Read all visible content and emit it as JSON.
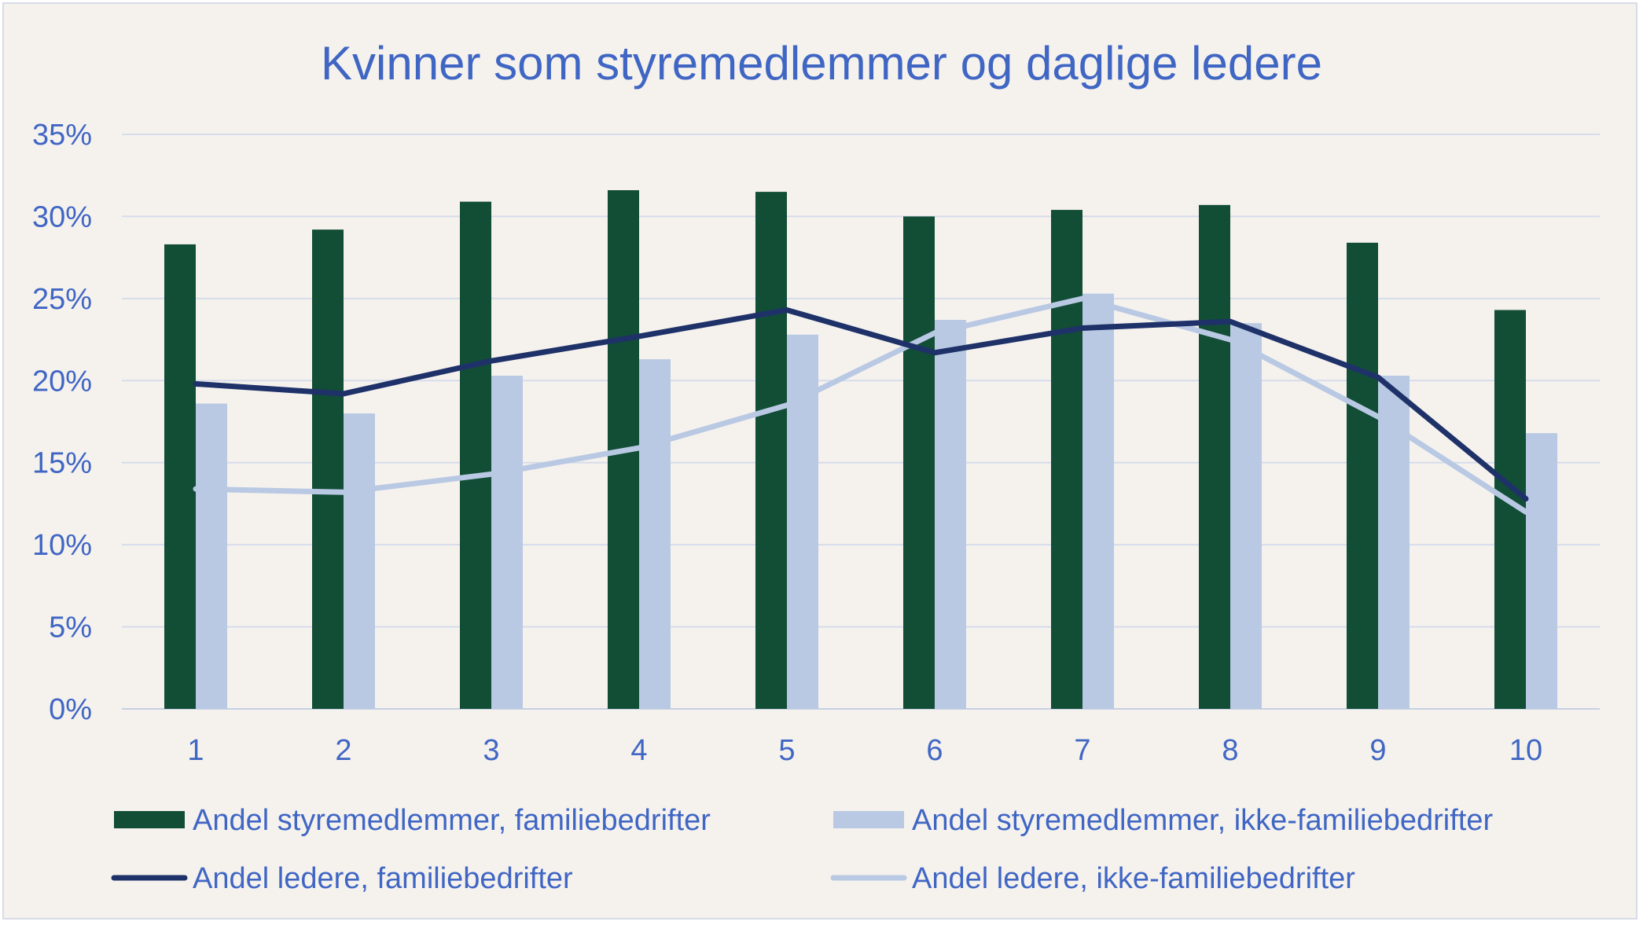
{
  "chart_data": {
    "type": "bar",
    "title": "Kvinner som styremedlemmer og daglige ledere",
    "categories": [
      "1",
      "2",
      "3",
      "4",
      "5",
      "6",
      "7",
      "8",
      "9",
      "10"
    ],
    "ylim": [
      0,
      35
    ],
    "y_ticks": [
      "0%",
      "5%",
      "10%",
      "15%",
      "20%",
      "25%",
      "30%",
      "35%"
    ],
    "y_unit": "%",
    "grid": true,
    "legend_position": "bottom",
    "series": [
      {
        "name": "Andel styremedlemmer, familiebedrifter",
        "kind": "bar",
        "color": "#124d36",
        "values": [
          28.3,
          29.2,
          30.9,
          31.6,
          31.5,
          30.0,
          30.4,
          30.7,
          28.4,
          24.3
        ]
      },
      {
        "name": "Andel styremedlemmer, ikke-familiebedrifter",
        "kind": "bar",
        "color": "#b9c9e3",
        "values": [
          18.6,
          18.0,
          20.3,
          21.3,
          22.8,
          23.7,
          25.3,
          23.5,
          20.3,
          16.8
        ]
      },
      {
        "name": "Andel ledere, familiebedrifter",
        "kind": "line",
        "color": "#1e3269",
        "values": [
          19.8,
          19.2,
          21.2,
          22.7,
          24.3,
          21.7,
          23.2,
          23.6,
          20.2,
          12.8
        ]
      },
      {
        "name": "Andel ledere, ikke-familiebedrifter",
        "kind": "line",
        "color": "#b9c9e3",
        "values": [
          13.4,
          13.2,
          14.3,
          15.9,
          18.5,
          22.9,
          25.0,
          22.5,
          17.8,
          12.0
        ]
      }
    ]
  }
}
